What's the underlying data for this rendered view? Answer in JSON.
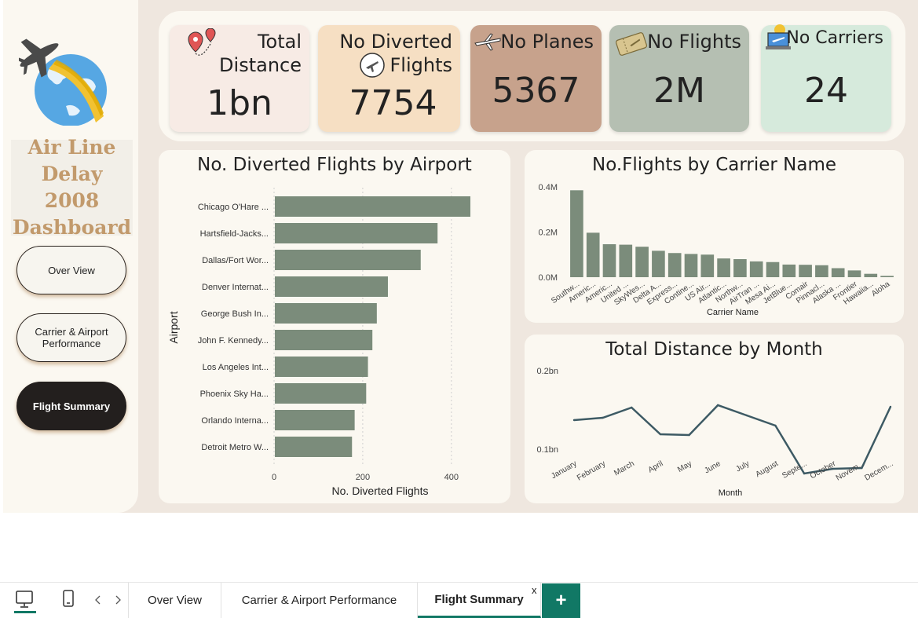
{
  "sidebar": {
    "title": "Air Line Delay 2008 Dashboard",
    "nav": [
      "Over View",
      "Carrier & Airport Performance",
      "Flight Summary"
    ]
  },
  "kpis": [
    {
      "label": "Total Distance",
      "value": "1bn",
      "icon": "map-pin-icon",
      "bg": "#f7ebe5"
    },
    {
      "label": "No Diverted Flights",
      "value": "7754",
      "icon": "diverted-plane-icon",
      "bg": "#f6dfc3"
    },
    {
      "label": "No Planes",
      "value": "5367",
      "icon": "airplane-icon",
      "bg": "#c7a28c"
    },
    {
      "label": "No Flights",
      "value": "2M",
      "icon": "ticket-icon",
      "bg": "#b5bfb2"
    },
    {
      "label": "No Carriers",
      "value": "24",
      "icon": "laptop-flight-icon",
      "bg": "#d6eadc"
    }
  ],
  "colors": {
    "bar": "#7b8c7b",
    "line": "#3d5a64",
    "accent": "#117865"
  },
  "charts": {
    "diverted": {
      "title": "No. Diverted Flights by Airport",
      "chart_data": {
        "type": "bar",
        "orientation": "horizontal",
        "title": "No. Diverted Flights by Airport",
        "xlabel": "No. Diverted Flights",
        "ylabel": "Airport",
        "categories": [
          "Chicago O'Hare ...",
          "Hartsfield-Jacks...",
          "Dallas/Fort Wor...",
          "Denver Internat...",
          "George Bush In...",
          "John F. Kennedy...",
          "Los Angeles Int...",
          "Phoenix Sky Ha...",
          "Orlando Interna...",
          "Detroit Metro W..."
        ],
        "values": [
          441,
          367,
          329,
          255,
          230,
          220,
          210,
          206,
          180,
          174
        ],
        "xlim": [
          0,
          480
        ],
        "xticks": [
          0,
          200,
          400
        ],
        "grid": true
      }
    },
    "carriers": {
      "title": "No.Flights by Carrier Name",
      "chart_data": {
        "type": "bar",
        "title": "No.Flights by Carrier Name",
        "xlabel": "Carrier Name",
        "ylabel": "",
        "categories": [
          "Southw...",
          "Americ...",
          "Americ...",
          "United ...",
          "SkyWes...",
          "Delta A...",
          "Express...",
          "Contine...",
          "US Air...",
          "Atlantic...",
          "Northw...",
          "AirTran ...",
          "Mesa Ai...",
          "JetBlue...",
          "Comair",
          "Pinnacl...",
          "Alaska ...",
          "Frontier",
          "Hawaiia...",
          "Aloha"
        ],
        "values": [
          0.385,
          0.197,
          0.146,
          0.144,
          0.135,
          0.117,
          0.107,
          0.103,
          0.1,
          0.083,
          0.08,
          0.07,
          0.067,
          0.056,
          0.055,
          0.053,
          0.04,
          0.03,
          0.015,
          0.006
        ],
        "unit": "M",
        "ylim": [
          0,
          0.4
        ],
        "yticks": [
          "0.0M",
          "0.2M",
          "0.4M"
        ],
        "grid": false
      }
    },
    "distance": {
      "title": "Total Distance by Month",
      "chart_data": {
        "type": "line",
        "title": "Total Distance by Month",
        "xlabel": "Month",
        "ylabel": "",
        "x": [
          "January",
          "February",
          "March",
          "April",
          "May",
          "June",
          "July",
          "August",
          "Septe...",
          "October",
          "Novem...",
          "Decem..."
        ],
        "values": [
          0.137,
          0.14,
          0.153,
          0.119,
          0.118,
          0.156,
          0.143,
          0.13,
          0.069,
          0.075,
          0.076,
          0.154
        ],
        "unit": "bn",
        "ylim": [
          0.05,
          0.2
        ],
        "yticks": [
          "0.1bn",
          "0.2bn"
        ],
        "grid": false
      }
    }
  },
  "tabs": {
    "items": [
      "Over View",
      "Carrier & Airport Performance",
      "Flight Summary"
    ],
    "active": "Flight Summary",
    "close": "x",
    "add": "+"
  }
}
